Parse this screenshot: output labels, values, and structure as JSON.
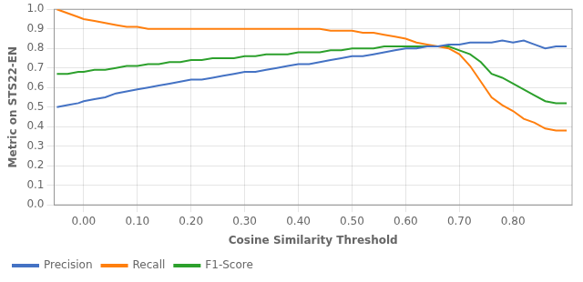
{
  "chart_data": {
    "type": "line",
    "xlabel": "Cosine Similarity Threshold",
    "ylabel": "Metric on STS22-EN",
    "x": [
      -0.05,
      -0.03,
      -0.01,
      0.0,
      0.02,
      0.04,
      0.06,
      0.08,
      0.1,
      0.12,
      0.14,
      0.16,
      0.18,
      0.2,
      0.22,
      0.24,
      0.26,
      0.28,
      0.3,
      0.32,
      0.34,
      0.36,
      0.38,
      0.4,
      0.42,
      0.44,
      0.46,
      0.48,
      0.5,
      0.52,
      0.54,
      0.56,
      0.58,
      0.6,
      0.62,
      0.64,
      0.66,
      0.68,
      0.7,
      0.72,
      0.74,
      0.76,
      0.78,
      0.8,
      0.82,
      0.84,
      0.86,
      0.88,
      0.9
    ],
    "series": [
      {
        "name": "Precision",
        "color": "#4472c4",
        "values": [
          0.5,
          0.51,
          0.52,
          0.53,
          0.54,
          0.55,
          0.57,
          0.58,
          0.59,
          0.6,
          0.61,
          0.62,
          0.63,
          0.64,
          0.64,
          0.65,
          0.66,
          0.67,
          0.68,
          0.68,
          0.69,
          0.7,
          0.71,
          0.72,
          0.72,
          0.73,
          0.74,
          0.75,
          0.76,
          0.76,
          0.77,
          0.78,
          0.79,
          0.8,
          0.8,
          0.81,
          0.81,
          0.82,
          0.82,
          0.83,
          0.83,
          0.83,
          0.84,
          0.83,
          0.84,
          0.82,
          0.8,
          0.81,
          0.81
        ]
      },
      {
        "name": "Recall",
        "color": "#ff7f0e",
        "values": [
          1.0,
          0.98,
          0.96,
          0.95,
          0.94,
          0.93,
          0.92,
          0.91,
          0.91,
          0.9,
          0.9,
          0.9,
          0.9,
          0.9,
          0.9,
          0.9,
          0.9,
          0.9,
          0.9,
          0.9,
          0.9,
          0.9,
          0.9,
          0.9,
          0.9,
          0.9,
          0.89,
          0.89,
          0.89,
          0.88,
          0.88,
          0.87,
          0.86,
          0.85,
          0.83,
          0.82,
          0.81,
          0.8,
          0.77,
          0.71,
          0.63,
          0.55,
          0.51,
          0.48,
          0.44,
          0.42,
          0.39,
          0.38,
          0.38
        ]
      },
      {
        "name": "F1-Score",
        "color": "#2ca02c",
        "values": [
          0.67,
          0.67,
          0.68,
          0.68,
          0.69,
          0.69,
          0.7,
          0.71,
          0.71,
          0.72,
          0.72,
          0.73,
          0.73,
          0.74,
          0.74,
          0.75,
          0.75,
          0.75,
          0.76,
          0.76,
          0.77,
          0.77,
          0.77,
          0.78,
          0.78,
          0.78,
          0.79,
          0.79,
          0.8,
          0.8,
          0.8,
          0.81,
          0.81,
          0.81,
          0.81,
          0.81,
          0.81,
          0.81,
          0.79,
          0.77,
          0.73,
          0.67,
          0.65,
          0.62,
          0.59,
          0.56,
          0.53,
          0.52,
          0.52
        ]
      }
    ],
    "xlim": [
      -0.055,
      0.91
    ],
    "ylim": [
      0.0,
      1.0
    ],
    "xticks": [
      {
        "value": 0.0,
        "label": "0.00"
      },
      {
        "value": 0.1,
        "label": "0.10"
      },
      {
        "value": 0.2,
        "label": "0.20"
      },
      {
        "value": 0.3,
        "label": "0.30"
      },
      {
        "value": 0.4,
        "label": "0.40"
      },
      {
        "value": 0.5,
        "label": "0.50"
      },
      {
        "value": 0.6,
        "label": "0.60"
      },
      {
        "value": 0.7,
        "label": "0.70"
      },
      {
        "value": 0.8,
        "label": "0.80"
      }
    ],
    "yticks": [
      {
        "value": 0.0,
        "label": "0.0"
      },
      0.1,
      0.2,
      0.3,
      0.4,
      0.5,
      0.6,
      0.7,
      0.8,
      0.9,
      {
        "value": 1.0,
        "label": "1.0"
      }
    ],
    "grid": true,
    "legend": "lower left"
  }
}
